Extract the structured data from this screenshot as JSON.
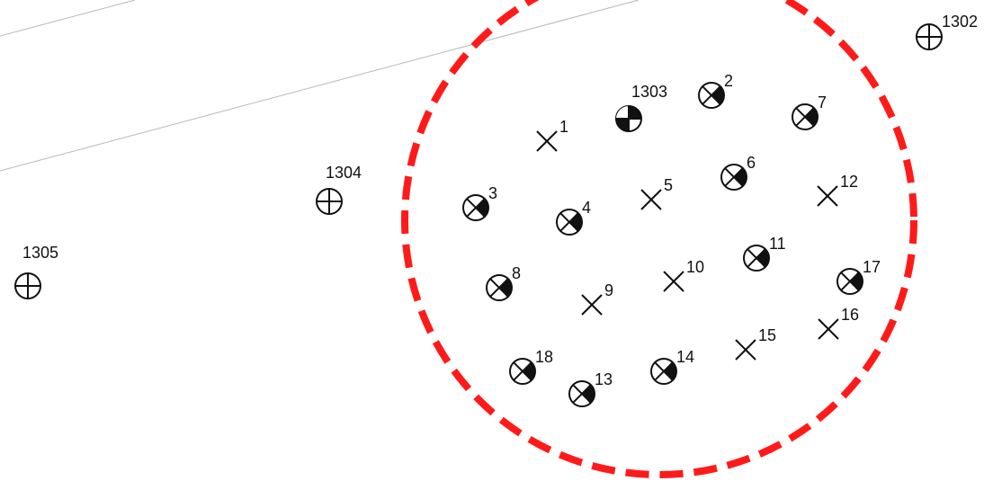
{
  "colors": {
    "background": "#ffffff",
    "symbol": "#111111",
    "boundary": "#ff1a1a",
    "guide_lines": "#b8b8b8"
  },
  "boundary": {
    "style": "dashed-circle"
  },
  "reference_points": [
    {
      "label": "1302",
      "icon": "crosshair-circle-icon"
    },
    {
      "label": "1303",
      "icon": "survey-benchmark-icon"
    },
    {
      "label": "1304",
      "icon": "crosshair-circle-icon"
    },
    {
      "label": "1305",
      "icon": "crosshair-circle-icon"
    }
  ],
  "points": [
    {
      "label": "1",
      "type": "x-marker"
    },
    {
      "label": "2",
      "type": "half-filled-circle"
    },
    {
      "label": "3",
      "type": "half-filled-circle"
    },
    {
      "label": "4",
      "type": "half-filled-circle"
    },
    {
      "label": "5",
      "type": "x-marker"
    },
    {
      "label": "6",
      "type": "half-filled-circle"
    },
    {
      "label": "7",
      "type": "half-filled-circle"
    },
    {
      "label": "8",
      "type": "half-filled-circle"
    },
    {
      "label": "9",
      "type": "x-marker"
    },
    {
      "label": "10",
      "type": "x-marker"
    },
    {
      "label": "11",
      "type": "half-filled-circle"
    },
    {
      "label": "12",
      "type": "x-marker"
    },
    {
      "label": "13",
      "type": "half-filled-circle"
    },
    {
      "label": "14",
      "type": "half-filled-circle"
    },
    {
      "label": "15",
      "type": "x-marker"
    },
    {
      "label": "16",
      "type": "x-marker"
    },
    {
      "label": "17",
      "type": "half-filled-circle"
    },
    {
      "label": "18",
      "type": "half-filled-circle"
    }
  ]
}
